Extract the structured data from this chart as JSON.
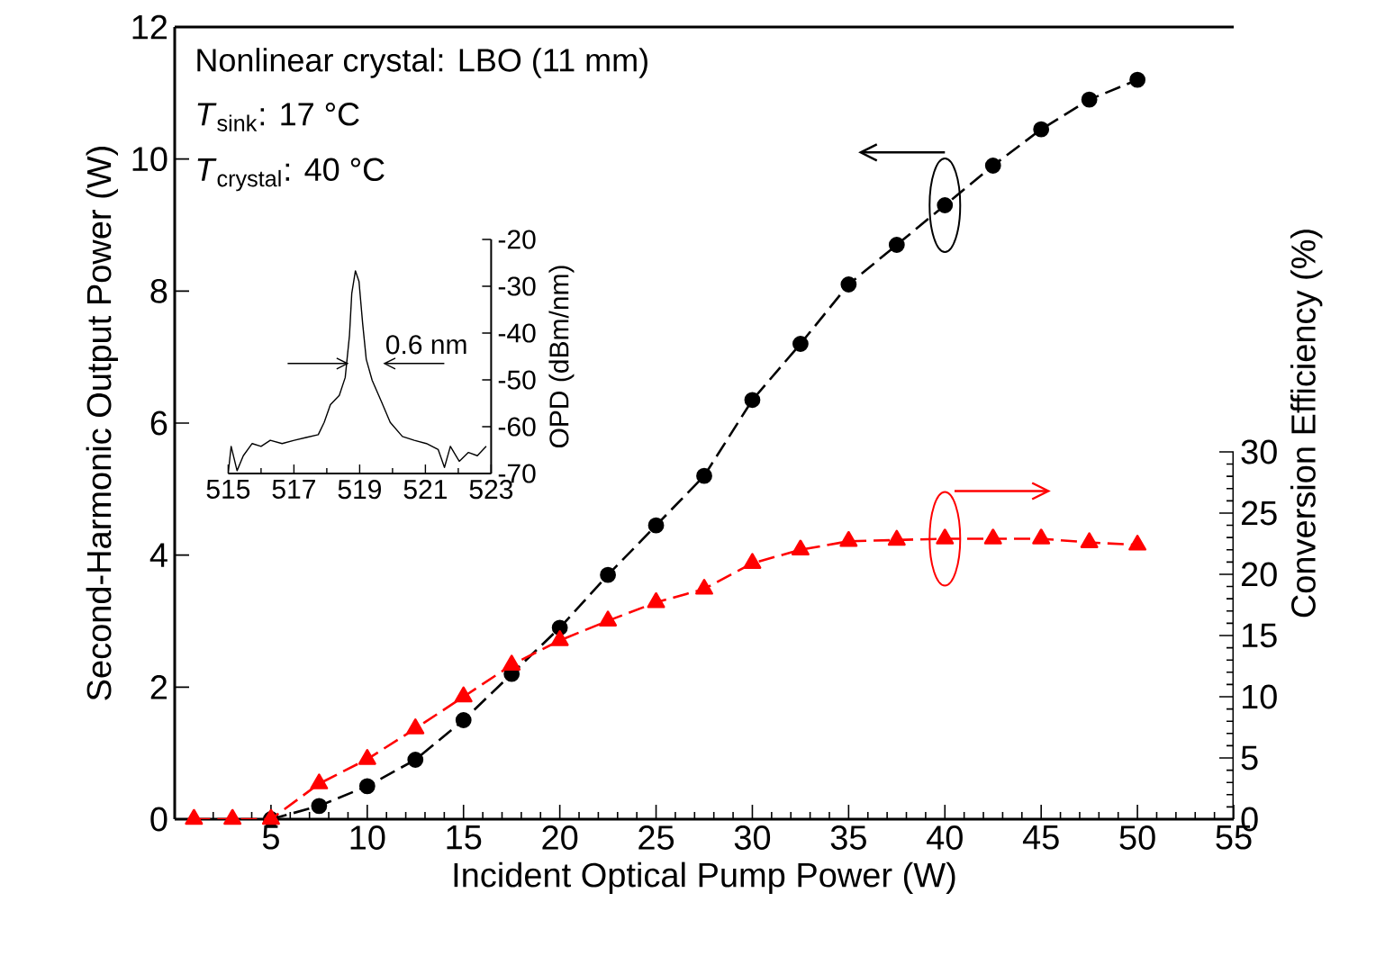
{
  "chart_data": [
    {
      "type": "line",
      "xlabel": "Incident Optical Pump Power (W)",
      "ylabel": "Second-Harmonic Output Power (W)",
      "y2label": "Conversion Efficiency (%)",
      "annotations": [
        "Nonlinear crystal: LBO (11 mm)",
        "*T*$_{sink}$: 17 °C",
        "*T*$_{crystal}$: 40 °C"
      ],
      "xlim": [
        0,
        55
      ],
      "xticks": [
        {
          "value": 0,
          "label": null
        },
        5,
        10,
        15,
        20,
        25,
        30,
        35,
        40,
        45,
        50,
        55
      ],
      "ylim": [
        0,
        12
      ],
      "yticks": [
        0,
        2,
        4,
        6,
        8,
        10,
        12
      ],
      "y2lim": [
        0,
        64.7
      ],
      "y2ticks": [
        0,
        5,
        10,
        15,
        20,
        25,
        30
      ],
      "series": [
        {
          "color": "#000000",
          "marker": "circle",
          "line_style": "dashed",
          "x": [
            5,
            7.5,
            10,
            12.5,
            15,
            17.5,
            20,
            22.5,
            25,
            27.5,
            30,
            32.5,
            35,
            37.5,
            40,
            42.5,
            45,
            47.5,
            50
          ],
          "values": [
            0,
            0.2,
            0.5,
            0.9,
            1.5,
            2.2,
            2.9,
            3.7,
            4.45,
            5.2,
            6.35,
            7.2,
            8.1,
            8.7,
            9.3,
            9.9,
            10.45,
            10.9,
            11.2
          ]
        },
        {
          "color": "#ff0000",
          "marker": "triangle",
          "line_style": "dashed",
          "axis": "y2",
          "x": [
            1,
            3,
            5,
            7.5,
            10,
            12.5,
            15,
            17.5,
            20,
            22.5,
            25,
            27.5,
            30,
            32.5,
            35,
            37.5,
            40,
            42.5,
            45,
            47.5,
            50
          ],
          "values": [
            0,
            0,
            0,
            2.9,
            4.9,
            7.4,
            10,
            12.6,
            14.6,
            16.2,
            17.7,
            18.8,
            20.9,
            22.0,
            22.7,
            22.8,
            22.9,
            22.9,
            22.9,
            22.6,
            22.4
          ]
        }
      ]
    },
    {
      "type": "line",
      "ylabel": "OPD (dBm/nm)",
      "xlim": [
        515,
        523
      ],
      "xticks": [
        515,
        517,
        519,
        521,
        523
      ],
      "ylim": [
        -70,
        -20
      ],
      "yticks": [
        -70,
        -60,
        -50,
        -40,
        -30,
        -20
      ],
      "annotations": [
        {
          "text": "0.6 nm",
          "x": 519,
          "y": -46.5
        }
      ],
      "series": [
        {
          "color": "#000000",
          "x": [
            515.0,
            515.09,
            515.27,
            515.46,
            515.73,
            516.0,
            516.28,
            516.64,
            517.01,
            517.37,
            517.74,
            517.92,
            518.11,
            518.38,
            518.56,
            518.69,
            518.76,
            518.87,
            518.98,
            519.09,
            519.2,
            519.38,
            519.66,
            519.93,
            520.3,
            520.66,
            521.03,
            521.39,
            521.58,
            521.76,
            522.03,
            522.31,
            522.58,
            522.85
          ],
          "values": [
            -70,
            -64.2,
            -69.4,
            -66.2,
            -63.6,
            -64.2,
            -62.9,
            -63.6,
            -62.9,
            -62.3,
            -61.7,
            -59.1,
            -55.3,
            -53.3,
            -49.5,
            -40.5,
            -31.5,
            -26.7,
            -29,
            -37.9,
            -45.6,
            -50.1,
            -54.6,
            -59.1,
            -62.1,
            -62.9,
            -63.6,
            -64.9,
            -68.7,
            -64.2,
            -67.4,
            -65.5,
            -66.2,
            -64.2
          ]
        }
      ]
    }
  ]
}
